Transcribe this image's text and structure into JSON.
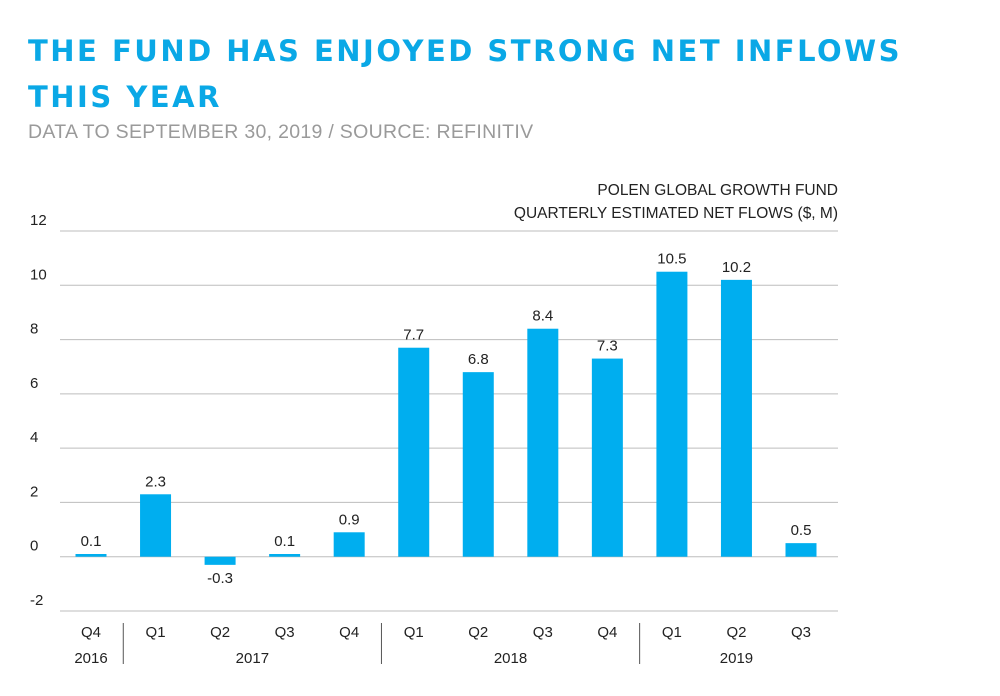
{
  "header": {
    "title": "THE FUND HAS ENJOYED STRONG NET INFLOWS THIS YEAR",
    "subtitle": "DATA TO SEPTEMBER 30, 2019 / SOURCE: REFINITIV"
  },
  "legend": {
    "line1": "POLEN GLOBAL GROWTH FUND",
    "line2": "QUARTERLY ESTIMATED NET FLOWS ($, M)"
  },
  "colors": {
    "bar": "#00aeef",
    "title": "#0aa8e6",
    "gridline": "#bdbdbd"
  },
  "chart_data": {
    "type": "bar",
    "ylim": [
      -2,
      12
    ],
    "yticks": [
      -2,
      0,
      2,
      4,
      6,
      8,
      10,
      12
    ],
    "grid": true,
    "legend_position": "top-right",
    "categories": [
      "Q4",
      "Q1",
      "Q2",
      "Q3",
      "Q4",
      "Q1",
      "Q2",
      "Q3",
      "Q4",
      "Q1",
      "Q2",
      "Q3"
    ],
    "years": [
      {
        "label": "2016",
        "count": 1
      },
      {
        "label": "2017",
        "count": 4
      },
      {
        "label": "2018",
        "count": 4
      },
      {
        "label": "2019",
        "count": 3
      }
    ],
    "values": [
      0.1,
      2.3,
      -0.3,
      0.1,
      0.9,
      7.7,
      6.8,
      8.4,
      7.3,
      10.5,
      10.2,
      0.5
    ],
    "value_labels": [
      "0.1",
      "2.3",
      "-0.3",
      "0.1",
      "0.9",
      "7.7",
      "6.8",
      "8.4",
      "7.3",
      "10.5",
      "10.2",
      "0.5"
    ]
  }
}
